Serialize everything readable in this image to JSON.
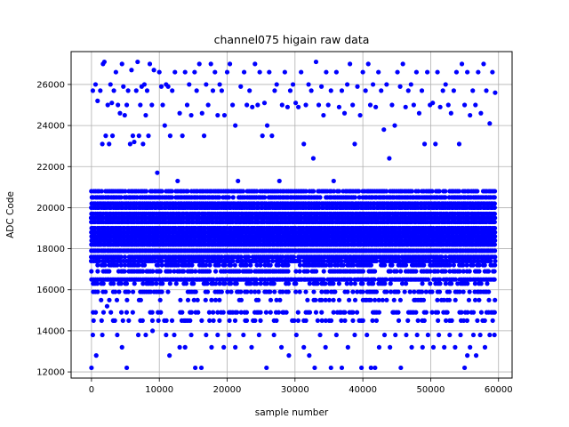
{
  "chart_data": {
    "type": "scatter",
    "title": "channel075 higain raw data",
    "xlabel": "sample number",
    "ylabel": "ADC Code",
    "xlim": [
      -3000,
      62000
    ],
    "ylim": [
      11700,
      27600
    ],
    "xticks": [
      0,
      10000,
      20000,
      30000,
      40000,
      50000,
      60000
    ],
    "yticks": [
      12000,
      14000,
      16000,
      18000,
      20000,
      22000,
      24000,
      26000
    ],
    "grid": true,
    "marker_color": "#0000ff",
    "series": [
      {
        "x_range": [
          0,
          59700
        ],
        "dense_bands": [
          [
            14500,
            0.33
          ],
          [
            14900,
            0.42
          ],
          [
            15500,
            0.28
          ],
          [
            15900,
            0.55
          ],
          [
            16300,
            0.45
          ],
          [
            16500,
            0.92
          ],
          [
            16900,
            0.7
          ],
          [
            17200,
            0.7
          ],
          [
            17400,
            0.95
          ],
          [
            17600,
            0.95
          ],
          [
            17900,
            1
          ],
          [
            18200,
            1
          ],
          [
            18400,
            1
          ],
          [
            18600,
            1
          ],
          [
            18800,
            1
          ],
          [
            19000,
            1
          ],
          [
            19300,
            1
          ],
          [
            19500,
            1
          ],
          [
            19700,
            1
          ],
          [
            20000,
            1
          ],
          [
            20200,
            1
          ],
          [
            20500,
            0.92
          ],
          [
            20800,
            0.88
          ]
        ],
        "outliers_high": [
          [
            200,
            25700
          ],
          [
            600,
            26000
          ],
          [
            900,
            25200
          ],
          [
            1300,
            25700
          ],
          [
            1600,
            23100
          ],
          [
            1700,
            27000
          ],
          [
            1900,
            27100
          ],
          [
            2100,
            23500
          ],
          [
            2400,
            25000
          ],
          [
            2600,
            23100
          ],
          [
            2800,
            26000
          ],
          [
            3000,
            25100
          ],
          [
            3100,
            23500
          ],
          [
            3300,
            25700
          ],
          [
            3600,
            26600
          ],
          [
            3900,
            25000
          ],
          [
            4200,
            24600
          ],
          [
            4500,
            27000
          ],
          [
            4700,
            25900
          ],
          [
            4900,
            24500
          ],
          [
            5200,
            25000
          ],
          [
            5400,
            25700
          ],
          [
            5700,
            23100
          ],
          [
            5900,
            26700
          ],
          [
            6100,
            23500
          ],
          [
            6300,
            23200
          ],
          [
            6600,
            25700
          ],
          [
            6800,
            27100
          ],
          [
            7000,
            23500
          ],
          [
            7200,
            25000
          ],
          [
            7400,
            25900
          ],
          [
            7600,
            23100
          ],
          [
            7800,
            26000
          ],
          [
            8000,
            24500
          ],
          [
            8200,
            25700
          ],
          [
            8400,
            23500
          ],
          [
            8600,
            27000
          ],
          [
            8900,
            25000
          ],
          [
            9200,
            26700
          ],
          [
            9700,
            21700
          ],
          [
            10000,
            26600
          ],
          [
            10300,
            25900
          ],
          [
            10500,
            25000
          ],
          [
            10800,
            24000
          ],
          [
            11000,
            26000
          ],
          [
            11300,
            25900
          ],
          [
            11600,
            23500
          ],
          [
            11900,
            25700
          ],
          [
            12300,
            26600
          ],
          [
            12700,
            21300
          ],
          [
            13000,
            24600
          ],
          [
            13400,
            23500
          ],
          [
            13800,
            26600
          ],
          [
            14100,
            25000
          ],
          [
            14400,
            26000
          ],
          [
            14700,
            24500
          ],
          [
            15200,
            26600
          ],
          [
            15500,
            25700
          ],
          [
            15900,
            27000
          ],
          [
            16300,
            24600
          ],
          [
            16600,
            23500
          ],
          [
            16900,
            26000
          ],
          [
            17200,
            25000
          ],
          [
            17600,
            27000
          ],
          [
            17900,
            25700
          ],
          [
            18200,
            26600
          ],
          [
            18600,
            24500
          ],
          [
            18900,
            26000
          ],
          [
            19200,
            25700
          ],
          [
            19600,
            24500
          ],
          [
            20000,
            26600
          ],
          [
            20400,
            27000
          ],
          [
            20800,
            25000
          ],
          [
            21200,
            24000
          ],
          [
            21600,
            21300
          ],
          [
            22000,
            25900
          ],
          [
            22500,
            26600
          ],
          [
            22900,
            25000
          ],
          [
            23300,
            25700
          ],
          [
            23700,
            24900
          ],
          [
            24100,
            27000
          ],
          [
            24500,
            25000
          ],
          [
            24800,
            26600
          ],
          [
            25200,
            23500
          ],
          [
            25500,
            25100
          ],
          [
            25900,
            24000
          ],
          [
            26200,
            26600
          ],
          [
            26600,
            23500
          ],
          [
            27000,
            25700
          ],
          [
            27300,
            26000
          ],
          [
            27700,
            21300
          ],
          [
            28100,
            25000
          ],
          [
            28500,
            26600
          ],
          [
            28900,
            24900
          ],
          [
            29300,
            25700
          ],
          [
            29700,
            26000
          ],
          [
            30100,
            25100
          ],
          [
            30500,
            24900
          ],
          [
            30900,
            26600
          ],
          [
            31300,
            23100
          ],
          [
            31600,
            25000
          ],
          [
            32000,
            26000
          ],
          [
            32400,
            25700
          ],
          [
            32700,
            22400
          ],
          [
            33100,
            27100
          ],
          [
            33500,
            25000
          ],
          [
            33900,
            25900
          ],
          [
            34200,
            24500
          ],
          [
            34600,
            26600
          ],
          [
            34900,
            25000
          ],
          [
            35300,
            25700
          ],
          [
            35700,
            21300
          ],
          [
            36100,
            26600
          ],
          [
            36500,
            24900
          ],
          [
            36900,
            25700
          ],
          [
            37300,
            24600
          ],
          [
            37700,
            26000
          ],
          [
            38100,
            27000
          ],
          [
            38500,
            25000
          ],
          [
            38800,
            23100
          ],
          [
            39200,
            25900
          ],
          [
            39600,
            24500
          ],
          [
            40000,
            26600
          ],
          [
            40400,
            25700
          ],
          [
            40800,
            27000
          ],
          [
            41100,
            25000
          ],
          [
            41500,
            26000
          ],
          [
            41900,
            24900
          ],
          [
            42300,
            26600
          ],
          [
            42700,
            25700
          ],
          [
            43100,
            23800
          ],
          [
            43500,
            26000
          ],
          [
            43900,
            22400
          ],
          [
            44300,
            25000
          ],
          [
            44700,
            24000
          ],
          [
            45100,
            26600
          ],
          [
            45500,
            25900
          ],
          [
            45900,
            27000
          ],
          [
            46300,
            24900
          ],
          [
            46700,
            25700
          ],
          [
            47100,
            26000
          ],
          [
            47500,
            25000
          ],
          [
            47900,
            26600
          ],
          [
            48300,
            24600
          ],
          [
            48700,
            25700
          ],
          [
            49100,
            23100
          ],
          [
            49500,
            26600
          ],
          [
            49900,
            25000
          ],
          [
            50300,
            25100
          ],
          [
            50700,
            23100
          ],
          [
            51000,
            26600
          ],
          [
            51400,
            24900
          ],
          [
            51800,
            25700
          ],
          [
            52200,
            26000
          ],
          [
            52600,
            25000
          ],
          [
            53000,
            24600
          ],
          [
            53400,
            25700
          ],
          [
            53800,
            26600
          ],
          [
            54200,
            23100
          ],
          [
            54600,
            27000
          ],
          [
            55000,
            25000
          ],
          [
            55400,
            26600
          ],
          [
            55800,
            24500
          ],
          [
            56200,
            25700
          ],
          [
            56600,
            25000
          ],
          [
            57000,
            26600
          ],
          [
            57400,
            24600
          ],
          [
            57800,
            27000
          ],
          [
            58200,
            25700
          ],
          [
            58700,
            24100
          ],
          [
            59100,
            26600
          ],
          [
            59500,
            25600
          ]
        ],
        "outliers_low": [
          [
            0,
            12200
          ],
          [
            200,
            13800
          ],
          [
            700,
            12800
          ],
          [
            1600,
            13800
          ],
          [
            2300,
            15200
          ],
          [
            3800,
            13800
          ],
          [
            4500,
            13200
          ],
          [
            5200,
            12200
          ],
          [
            6900,
            13800
          ],
          [
            8000,
            13800
          ],
          [
            9000,
            14000
          ],
          [
            11000,
            13800
          ],
          [
            11500,
            12800
          ],
          [
            12200,
            13800
          ],
          [
            13000,
            13200
          ],
          [
            13800,
            13200
          ],
          [
            14700,
            13800
          ],
          [
            15300,
            12200
          ],
          [
            16200,
            12200
          ],
          [
            16900,
            13800
          ],
          [
            17700,
            13200
          ],
          [
            18600,
            13800
          ],
          [
            19500,
            13200
          ],
          [
            20300,
            13800
          ],
          [
            21200,
            13200
          ],
          [
            22400,
            13800
          ],
          [
            23600,
            13200
          ],
          [
            24700,
            13800
          ],
          [
            25800,
            12200
          ],
          [
            26900,
            13800
          ],
          [
            28000,
            13200
          ],
          [
            29100,
            12800
          ],
          [
            30200,
            13800
          ],
          [
            31300,
            13200
          ],
          [
            32100,
            12800
          ],
          [
            32900,
            12200
          ],
          [
            33700,
            13800
          ],
          [
            34500,
            13200
          ],
          [
            35300,
            12200
          ],
          [
            36100,
            13800
          ],
          [
            36900,
            12200
          ],
          [
            37800,
            13200
          ],
          [
            38800,
            13800
          ],
          [
            39800,
            12200
          ],
          [
            40600,
            13800
          ],
          [
            41200,
            12200
          ],
          [
            41800,
            12200
          ],
          [
            42400,
            13200
          ],
          [
            43200,
            13800
          ],
          [
            44000,
            13200
          ],
          [
            44800,
            13800
          ],
          [
            45600,
            12200
          ],
          [
            46400,
            13800
          ],
          [
            47200,
            13200
          ],
          [
            48000,
            13800
          ],
          [
            48800,
            13200
          ],
          [
            49600,
            13800
          ],
          [
            50400,
            13200
          ],
          [
            51200,
            13800
          ],
          [
            52000,
            13200
          ],
          [
            52800,
            13800
          ],
          [
            53600,
            13200
          ],
          [
            54400,
            13800
          ],
          [
            55000,
            12200
          ],
          [
            55400,
            12800
          ],
          [
            55800,
            13200
          ],
          [
            56300,
            13800
          ],
          [
            56700,
            12800
          ],
          [
            57300,
            13800
          ],
          [
            58000,
            13200
          ],
          [
            58700,
            13800
          ],
          [
            59400,
            13800
          ]
        ]
      }
    ]
  }
}
